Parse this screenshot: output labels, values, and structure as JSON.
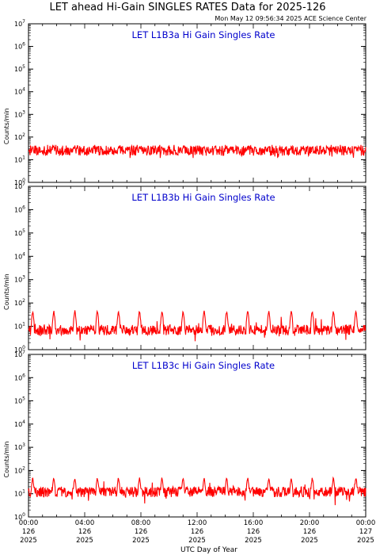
{
  "header": {
    "title": "LET ahead Hi-Gain SINGLES RATES Data for 2025-126",
    "timestamp": "Mon May 12 09:56:34 2025 ACE Science Center"
  },
  "x_axis": {
    "label": "UTC Day of Year",
    "ticks": [
      {
        "time": "00:00",
        "doy": "126",
        "year": "2025"
      },
      {
        "time": "04:00",
        "doy": "126",
        "year": "2025"
      },
      {
        "time": "08:00",
        "doy": "126",
        "year": "2025"
      },
      {
        "time": "12:00",
        "doy": "126",
        "year": "2025"
      },
      {
        "time": "16:00",
        "doy": "126",
        "year": "2025"
      },
      {
        "time": "20:00",
        "doy": "126",
        "year": "2025"
      },
      {
        "time": "00:00",
        "doy": "127",
        "year": "2025"
      }
    ]
  },
  "colors": {
    "series": "#ff0000",
    "panel_title": "#0000cc",
    "axes": "#000000"
  },
  "chart_data": [
    {
      "type": "line",
      "title": "LET L1B3a Hi Gain Singles Rate",
      "ylabel": "Counts/min",
      "yscale": "log",
      "ylim": [
        1,
        10000000
      ],
      "x_unit": "hours of day 2025-126",
      "xlim": [
        0,
        24
      ],
      "baseline": 25,
      "peak": 45,
      "noise_range": [
        15,
        40
      ],
      "peak_hours": [
        0.3,
        1.8,
        3.3,
        4.9,
        6.4,
        7.9,
        9.5,
        11.0,
        12.5,
        14.1,
        15.6,
        17.1,
        18.7,
        20.2,
        21.7,
        23.3
      ]
    },
    {
      "type": "line",
      "title": "LET L1B3b Hi Gain Singles Rate",
      "ylabel": "Counts/min",
      "yscale": "log",
      "ylim": [
        1,
        10000000
      ],
      "x_unit": "hours of day 2025-126",
      "xlim": [
        0,
        24
      ],
      "baseline": 7,
      "peak": 50,
      "noise_range": [
        1,
        20
      ],
      "peak_hours": [
        0.3,
        1.8,
        3.3,
        4.9,
        6.4,
        7.9,
        9.5,
        11.0,
        12.5,
        14.1,
        15.6,
        17.1,
        18.7,
        20.2,
        21.7,
        23.3
      ]
    },
    {
      "type": "line",
      "title": "LET L1B3c Hi Gain Singles Rate",
      "ylabel": "Counts/min",
      "yscale": "log",
      "ylim": [
        1,
        10000000
      ],
      "x_unit": "hours of day 2025-126",
      "xlim": [
        0,
        24
      ],
      "baseline": 12,
      "peak": 55,
      "noise_range": [
        2,
        25
      ],
      "peak_hours": [
        0.3,
        1.8,
        3.3,
        4.9,
        6.4,
        7.9,
        9.5,
        11.0,
        12.5,
        14.1,
        15.6,
        17.1,
        18.7,
        20.2,
        21.7,
        23.3
      ]
    }
  ]
}
